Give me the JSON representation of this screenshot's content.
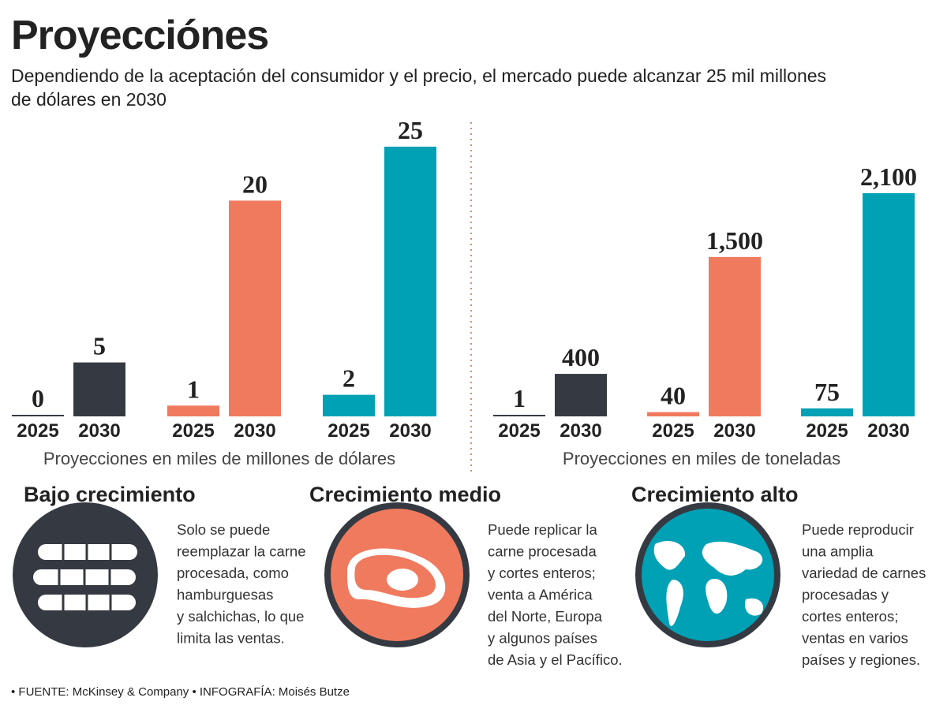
{
  "header": {
    "title": "Proyecciónes",
    "subtitle": [
      "Dependiendo de la aceptación del consumidor y el precio, el mercado puede alcanzar 25 mil millones",
      "de dólares en 2030"
    ]
  },
  "chart_data": [
    {
      "type": "bar",
      "categories": [
        "2025",
        "2030",
        "2025",
        "2030",
        "2025",
        "2030"
      ],
      "values": [
        0,
        5,
        1,
        20,
        2,
        25
      ],
      "colors": [
        "#353a42",
        "#353a42",
        "#f07a5e",
        "#f07a5e",
        "#00a0b5",
        "#00a0b5"
      ],
      "ylim": [
        0,
        25
      ],
      "x_label": "Proyecciones en miles de millones de dólares"
    },
    {
      "type": "bar",
      "categories": [
        "2025",
        "2030",
        "2025",
        "2030",
        "2025",
        "2030"
      ],
      "values": [
        1,
        400,
        40,
        1500,
        75,
        2100
      ],
      "value_labels": [
        "1",
        "400",
        "40",
        "1,500",
        "75",
        "2,100"
      ],
      "colors": [
        "#353a42",
        "#353a42",
        "#f07a5e",
        "#f07a5e",
        "#00a0b5",
        "#00a0b5"
      ],
      "ylim": [
        0,
        2100
      ],
      "x_label": "Proyecciones en miles de toneladas"
    }
  ],
  "scenarios": [
    {
      "title": "Bajo crecimiento",
      "lines": [
        "Solo se puede",
        "reemplazar la carne",
        "procesada, como",
        "hamburguesas",
        "y salchichas, lo que",
        "limita las ventas."
      ]
    },
    {
      "title": "Crecimiento medio",
      "lines": [
        "Puede replicar la",
        "carne procesada",
        "y cortes enteros;",
        "venta a América",
        "del Norte, Europa",
        "y algunos países",
        "de Asia y el Pacífico."
      ]
    },
    {
      "title": "Crecimiento alto",
      "lines": [
        "Puede reproducir",
        "una amplia",
        "variedad de carnes",
        "procesadas y",
        "cortes enteros;",
        "ventas en varios",
        "países y regiones."
      ]
    }
  ],
  "footer": "• FUENTE:  McKinsey & Company • INFOGRAFÍA: Moisés Butze"
}
